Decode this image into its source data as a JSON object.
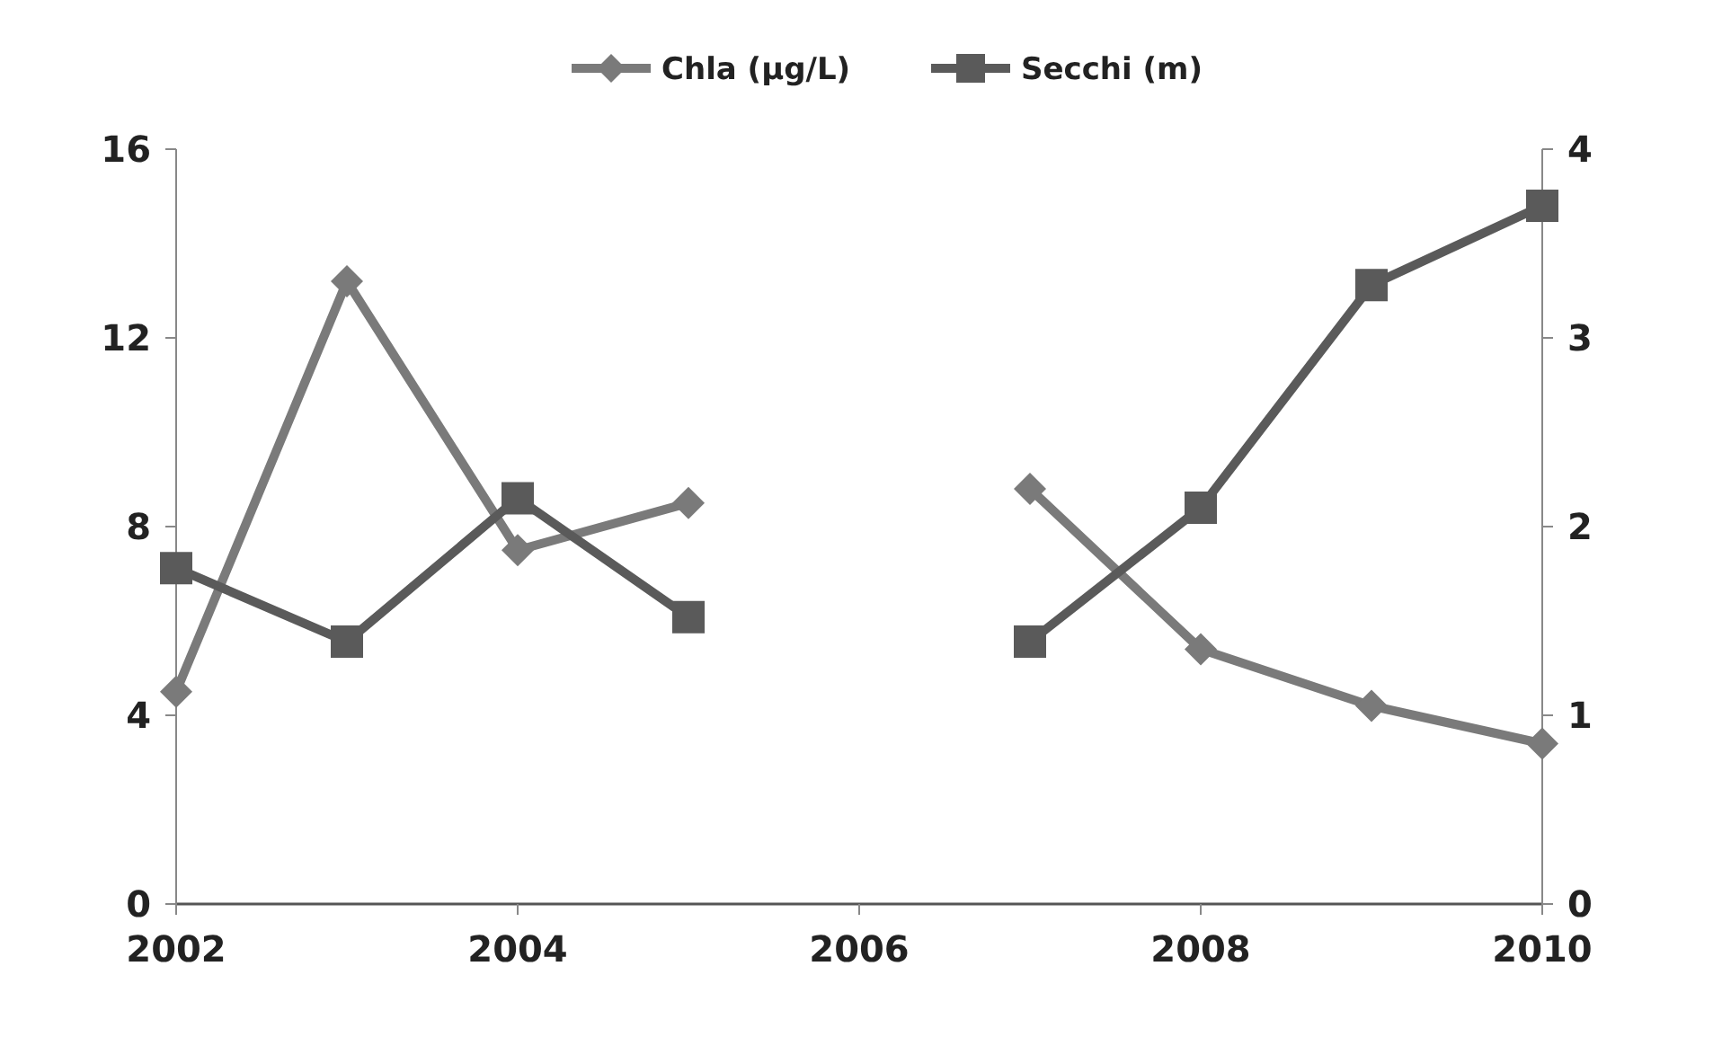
{
  "chart_data": {
    "type": "line",
    "x": [
      2002,
      2003,
      2004,
      2005,
      2006,
      2007,
      2008,
      2009,
      2010
    ],
    "xlim": [
      2002,
      2010
    ],
    "xticks": [
      2002,
      2004,
      2006,
      2008,
      2010
    ],
    "ylim": [
      0,
      16
    ],
    "yticks": [
      0,
      4,
      8,
      12,
      16
    ],
    "y2lim": [
      0,
      4
    ],
    "y2ticks": [
      0,
      1,
      2,
      3,
      4
    ],
    "legend": "top",
    "grid": false,
    "series": [
      {
        "name": "Chla  (µg/L)",
        "color": "#7a7a7a",
        "marker": "diamond",
        "values": [
          4.5,
          13.2,
          7.5,
          8.5,
          null,
          8.8,
          5.4,
          4.2,
          3.4
        ]
      },
      {
        "name": "Secchi (m)",
        "color": "#5a5a5a",
        "marker": "square",
        "axis": "y2",
        "values": [
          1.78,
          1.39,
          2.15,
          1.52,
          null,
          1.39,
          2.1,
          3.28,
          3.7
        ]
      }
    ]
  }
}
